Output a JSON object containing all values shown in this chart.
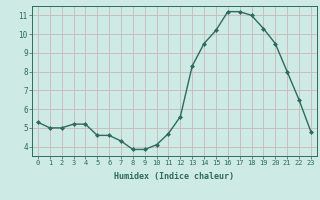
{
  "x": [
    0,
    1,
    2,
    3,
    4,
    5,
    6,
    7,
    8,
    9,
    10,
    11,
    12,
    13,
    14,
    15,
    16,
    17,
    18,
    19,
    20,
    21,
    22,
    23
  ],
  "y": [
    5.3,
    5.0,
    5.0,
    5.2,
    5.2,
    4.6,
    4.6,
    4.3,
    3.85,
    3.85,
    4.1,
    4.7,
    5.6,
    8.3,
    9.5,
    10.2,
    11.2,
    11.2,
    11.0,
    10.3,
    9.5,
    8.0,
    6.5,
    4.8
  ],
  "xlabel": "Humidex (Indice chaleur)",
  "ylim": [
    3.5,
    11.5
  ],
  "xlim": [
    -0.5,
    23.5
  ],
  "yticks": [
    4,
    5,
    6,
    7,
    8,
    9,
    10,
    11
  ],
  "xticks": [
    0,
    1,
    2,
    3,
    4,
    5,
    6,
    7,
    8,
    9,
    10,
    11,
    12,
    13,
    14,
    15,
    16,
    17,
    18,
    19,
    20,
    21,
    22,
    23
  ],
  "line_color": "#2d6b5e",
  "marker_color": "#2d6b5e",
  "bg_color": "#ceeae4",
  "grid_color_major": "#c8b8b8",
  "axes_color": "#2d6b5e",
  "label_color": "#2d6b5e",
  "tick_color": "#2d6b5e",
  "font_family": "monospace"
}
